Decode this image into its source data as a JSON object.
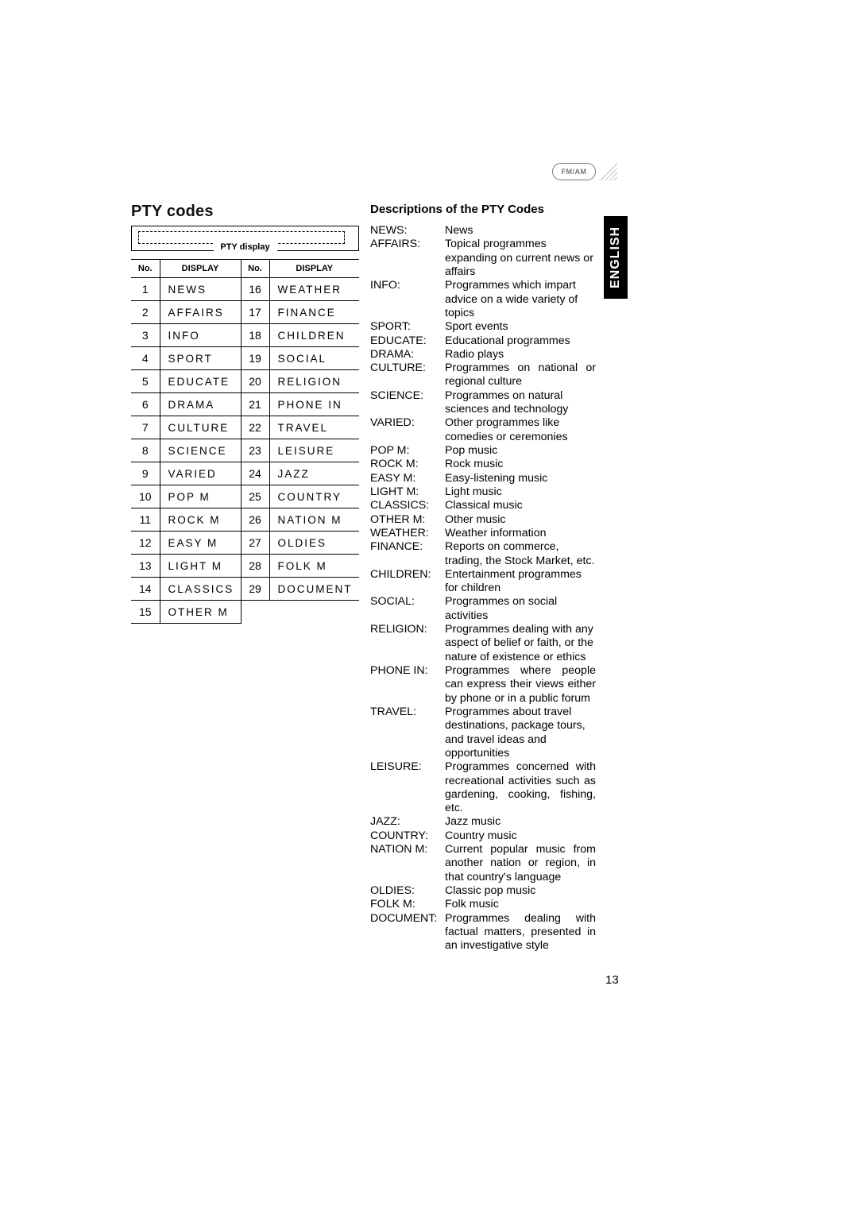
{
  "badge": "FM/AM",
  "language_tab": "ENGLISH",
  "page_number": "13",
  "section_title": "PTY codes",
  "pty_display_label": "PTY display",
  "table": {
    "headers": {
      "no": "No.",
      "display": "DISPLAY"
    },
    "left": [
      {
        "no": "1",
        "display": "NEWS"
      },
      {
        "no": "2",
        "display": "AFFAIRS"
      },
      {
        "no": "3",
        "display": "INFO"
      },
      {
        "no": "4",
        "display": "SPORT"
      },
      {
        "no": "5",
        "display": "EDUCATE"
      },
      {
        "no": "6",
        "display": "DRAMA"
      },
      {
        "no": "7",
        "display": "CULTURE"
      },
      {
        "no": "8",
        "display": "SCIENCE"
      },
      {
        "no": "9",
        "display": "VARIED"
      },
      {
        "no": "10",
        "display": "POP M"
      },
      {
        "no": "11",
        "display": "ROCK M"
      },
      {
        "no": "12",
        "display": "EASY M"
      },
      {
        "no": "13",
        "display": "LIGHT  M"
      },
      {
        "no": "14",
        "display": "CLASSICS"
      },
      {
        "no": "15",
        "display": "OTHER M"
      }
    ],
    "right": [
      {
        "no": "16",
        "display": "WEATHER"
      },
      {
        "no": "17",
        "display": "FINANCE"
      },
      {
        "no": "18",
        "display": "CHILDREN"
      },
      {
        "no": "19",
        "display": "SOCIAL"
      },
      {
        "no": "20",
        "display": "RELIGION"
      },
      {
        "no": "21",
        "display": "PHONE IN"
      },
      {
        "no": "22",
        "display": "TRAVEL"
      },
      {
        "no": "23",
        "display": "LEISURE"
      },
      {
        "no": "24",
        "display": "JAZZ"
      },
      {
        "no": "25",
        "display": "COUNTRY"
      },
      {
        "no": "26",
        "display": "NATION M"
      },
      {
        "no": "27",
        "display": "OLDIES"
      },
      {
        "no": "28",
        "display": "FOLK M"
      },
      {
        "no": "29",
        "display": "DOCUMENT"
      }
    ]
  },
  "desc_title": "Descriptions of the PTY Codes",
  "descriptions": [
    {
      "label": "NEWS:",
      "text": "News"
    },
    {
      "label": "AFFAIRS:",
      "text": "Topical programmes expanding on current news or affairs"
    },
    {
      "label": "INFO:",
      "text": "Programmes which impart advice on a wide variety of topics"
    },
    {
      "label": "SPORT:",
      "text": "Sport events"
    },
    {
      "label": "EDUCATE:",
      "text": "Educational programmes"
    },
    {
      "label": "DRAMA:",
      "text": "Radio plays"
    },
    {
      "label": "CULTURE:",
      "text": "Programmes on national or regional culture",
      "justify": true
    },
    {
      "label": "SCIENCE:",
      "text": "Programmes on natural sciences and technology"
    },
    {
      "label": "VARIED:",
      "text": "Other programmes like comedies or ceremonies"
    },
    {
      "label": "POP M:",
      "text": "Pop music"
    },
    {
      "label": "ROCK M:",
      "text": "Rock music"
    },
    {
      "label": "EASY M:",
      "text": "Easy-listening music"
    },
    {
      "label": "LIGHT M:",
      "text": "Light music"
    },
    {
      "label": "CLASSICS:",
      "text": "Classical music"
    },
    {
      "label": "OTHER M:",
      "text": "Other music"
    },
    {
      "label": "WEATHER:",
      "text": "Weather information"
    },
    {
      "label": "FINANCE:",
      "text": "Reports on commerce, trading, the Stock Market, etc."
    },
    {
      "label": "CHILDREN:",
      "text": "Entertainment programmes for children"
    },
    {
      "label": "SOCIAL:",
      "text": "Programmes on social activities"
    },
    {
      "label": "RELIGION:",
      "text": "Programmes dealing with any aspect of belief or faith, or the nature of existence or ethics"
    },
    {
      "label": "PHONE IN:",
      "text": "Programmes where people can express their views either by phone or in a public forum",
      "justify": true
    },
    {
      "label": "TRAVEL:",
      "text": "Programmes about travel destinations, package tours, and travel ideas and opportunities"
    },
    {
      "label": "LEISURE:",
      "text": "Programmes concerned with recreational activities such as gardening, cooking, fishing, etc.",
      "justify": true
    },
    {
      "label": "JAZZ:",
      "text": "Jazz music"
    },
    {
      "label": "COUNTRY:",
      "text": "Country music"
    },
    {
      "label": "NATION M:",
      "text": "Current popular music from another nation or region, in that country's language",
      "justify": true
    },
    {
      "label": "OLDIES:",
      "text": "Classic pop music"
    },
    {
      "label": "FOLK M:",
      "text": "Folk music"
    },
    {
      "label": "DOCUMENT:",
      "text": "Programmes dealing with factual matters, presented in an investigative style",
      "justify": true
    }
  ]
}
